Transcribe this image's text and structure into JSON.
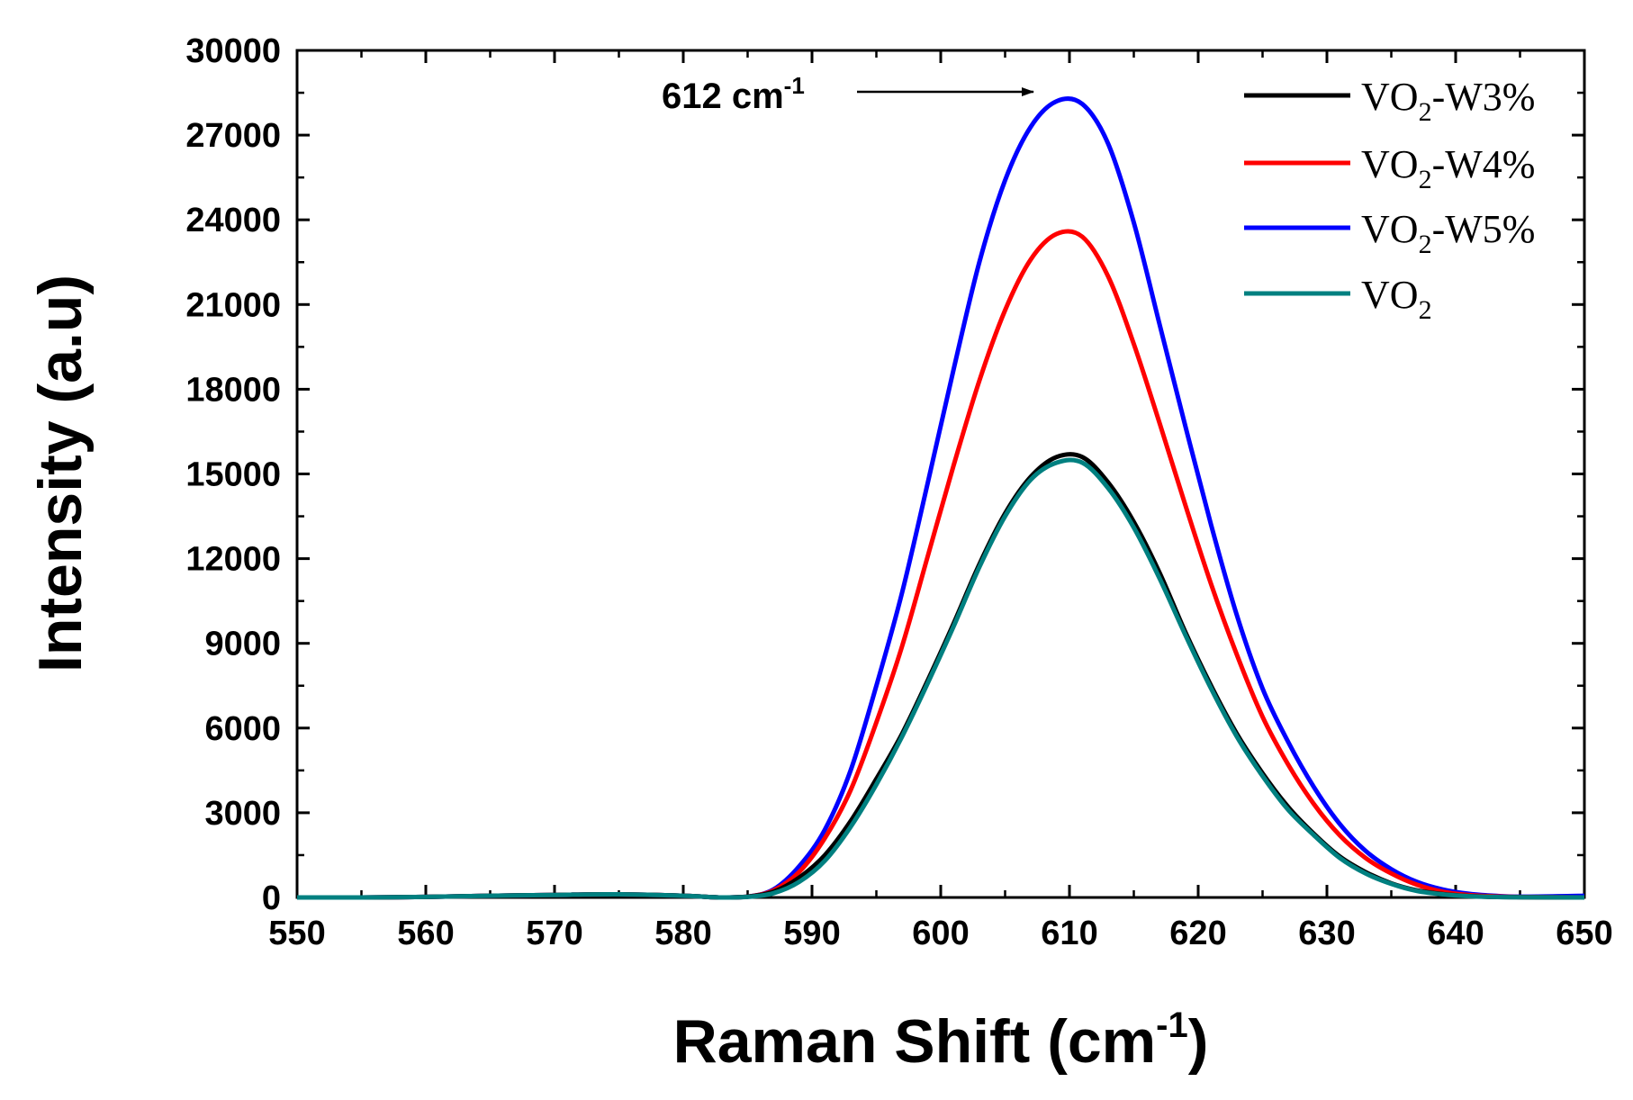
{
  "chart_data": {
    "type": "line",
    "title": "",
    "xlabel": "Raman Shift (cm",
    "xlabel_sup": "-1",
    "xlabel_end": ")",
    "ylabel": "Intensity (a.u)",
    "xlim": [
      550,
      650
    ],
    "ylim": [
      0,
      30000
    ],
    "xticks": [
      550,
      560,
      570,
      580,
      590,
      600,
      610,
      620,
      630,
      640,
      650
    ],
    "yticks": [
      0,
      3000,
      6000,
      9000,
      12000,
      15000,
      18000,
      21000,
      24000,
      27000,
      30000
    ],
    "grid": false,
    "legend_position": "top-right",
    "x": [
      550,
      555,
      560,
      565,
      570,
      575,
      580,
      583,
      585,
      587,
      589,
      591,
      593,
      595,
      597,
      599,
      601,
      603,
      605,
      607,
      609,
      611,
      613,
      615,
      617,
      619,
      621,
      623,
      625,
      627,
      629,
      631,
      633,
      635,
      637,
      639,
      641,
      643,
      645,
      650
    ],
    "series": [
      {
        "name": "VO2-W3%",
        "legend_base": "VO",
        "legend_sub": "2",
        "legend_rest": "-W3%",
        "color": "#000000",
        "values": [
          0,
          0,
          20,
          60,
          90,
          110,
          60,
          0,
          30,
          200,
          700,
          1500,
          2700,
          4200,
          5800,
          7700,
          9700,
          11800,
          13600,
          14900,
          15600,
          15600,
          14700,
          13300,
          11500,
          9400,
          7500,
          5800,
          4400,
          3200,
          2250,
          1450,
          900,
          500,
          250,
          120,
          50,
          20,
          10,
          0
        ]
      },
      {
        "name": "VO2-W4%",
        "legend_base": "VO",
        "legend_sub": "2",
        "legend_rest": "-W4%",
        "color": "#ff0000",
        "values": [
          0,
          0,
          20,
          60,
          90,
          110,
          60,
          0,
          30,
          250,
          900,
          2100,
          3800,
          6200,
          8900,
          12100,
          15300,
          18300,
          20800,
          22600,
          23500,
          23400,
          22000,
          19600,
          16800,
          13900,
          11100,
          8600,
          6400,
          4700,
          3300,
          2200,
          1400,
          850,
          450,
          200,
          90,
          40,
          15,
          0
        ]
      },
      {
        "name": "VO2-W5%",
        "legend_base": "VO",
        "legend_sub": "2",
        "legend_rest": "-W5%",
        "color": "#0000ff",
        "values": [
          0,
          0,
          20,
          60,
          90,
          110,
          60,
          0,
          30,
          280,
          1100,
          2400,
          4500,
          7500,
          10800,
          14700,
          18700,
          22500,
          25400,
          27300,
          28200,
          28100,
          26700,
          23900,
          20300,
          16700,
          13200,
          10000,
          7400,
          5500,
          3900,
          2600,
          1650,
          1000,
          550,
          280,
          130,
          60,
          30,
          60
        ]
      },
      {
        "name": "VO2",
        "legend_base": "VO",
        "legend_sub": "2",
        "legend_rest": "",
        "color": "#008080",
        "values": [
          0,
          0,
          20,
          60,
          90,
          110,
          60,
          0,
          20,
          150,
          550,
          1300,
          2500,
          4000,
          5700,
          7600,
          9600,
          11700,
          13500,
          14800,
          15400,
          15400,
          14500,
          13100,
          11300,
          9300,
          7400,
          5700,
          4300,
          3100,
          2200,
          1400,
          850,
          480,
          230,
          110,
          45,
          18,
          8,
          0
        ]
      }
    ],
    "annotations": [
      {
        "text": "612 cm",
        "sup": "-1",
        "arrow": true,
        "points_to_x": 609,
        "points_to_y": 28200
      }
    ]
  }
}
